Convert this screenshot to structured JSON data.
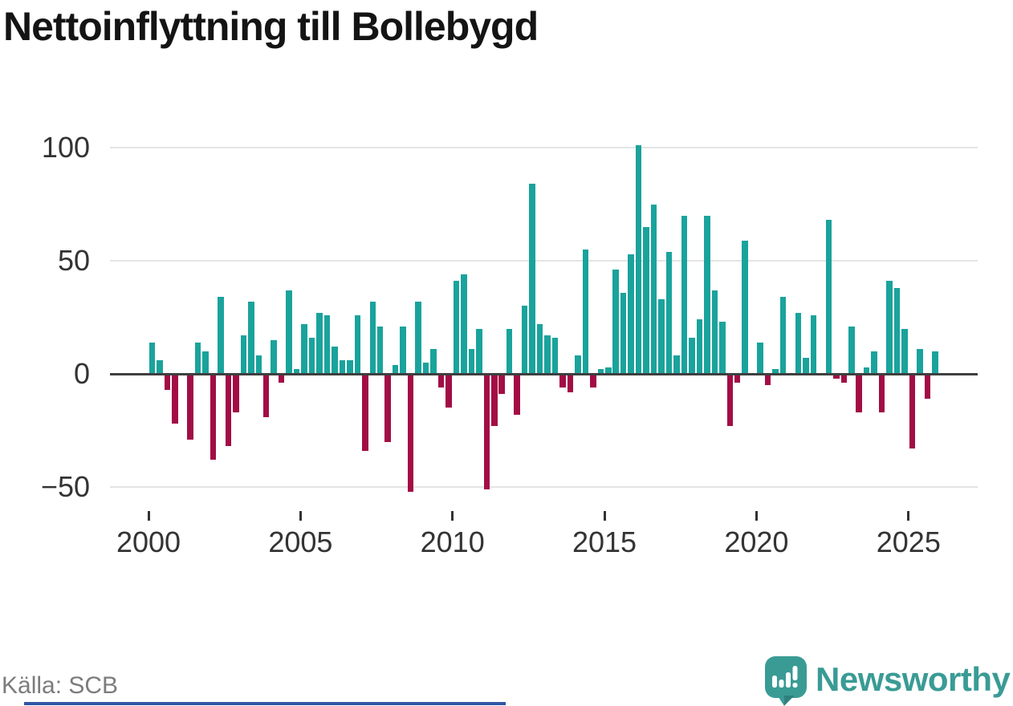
{
  "title": "Nettoinflyttning till Bollebygd",
  "source": "Källa: SCB",
  "branding": {
    "name": "Newsworthy"
  },
  "colors": {
    "positive_bar": "#1aa39c",
    "negative_bar": "#a20d45",
    "grid": "#e4e4e4",
    "zero_line": "#3f3f3f",
    "axis_text": "#333333",
    "title_text": "#141414",
    "source_text": "#7c7c7c",
    "brand_teal": "#3a9b95",
    "brand_teal_dark": "#2e817c",
    "bottom_bar_blue": "#2f55a4"
  },
  "chart_data": {
    "type": "bar",
    "title": "Nettoinflyttning till Bollebygd",
    "frequency": "quarterly",
    "start_period": "2000 Q1",
    "end_period": "2025 Q4",
    "values": [
      14,
      6,
      -7,
      -22,
      0,
      -29,
      14,
      10,
      -38,
      34,
      -32,
      -17,
      17,
      32,
      8,
      -19,
      15,
      -4,
      37,
      2,
      22,
      16,
      27,
      26,
      12,
      6,
      6,
      26,
      -34,
      32,
      21,
      -30,
      4,
      21,
      -52,
      32,
      5,
      11,
      -6,
      -15,
      41,
      44,
      11,
      20,
      -51,
      -23,
      -9,
      20,
      -18,
      30,
      84,
      22,
      17,
      16,
      -6,
      -8,
      8,
      55,
      -6,
      2,
      3,
      46,
      36,
      53,
      101,
      65,
      75,
      33,
      54,
      8,
      70,
      16,
      24,
      70,
      37,
      23,
      -23,
      -4,
      59,
      0,
      14,
      -5,
      2,
      34,
      0,
      27,
      7,
      26,
      0,
      68,
      -2,
      -4,
      21,
      -17,
      3,
      10,
      -17,
      41,
      38,
      20,
      -33,
      11,
      -11,
      10
    ],
    "yticks": [
      {
        "label": "100",
        "value": 100
      },
      {
        "label": "50",
        "value": 50
      },
      {
        "label": "0",
        "value": 0
      },
      {
        "label": "−50",
        "value": -50
      }
    ],
    "xticks": [
      {
        "label": "2000",
        "year": 2000
      },
      {
        "label": "2005",
        "year": 2005
      },
      {
        "label": "2010",
        "year": 2010
      },
      {
        "label": "2015",
        "year": 2015
      },
      {
        "label": "2020",
        "year": 2020
      },
      {
        "label": "2025",
        "year": 2025
      }
    ],
    "ylim": [
      -55,
      105
    ],
    "grid": true,
    "legend": false
  }
}
